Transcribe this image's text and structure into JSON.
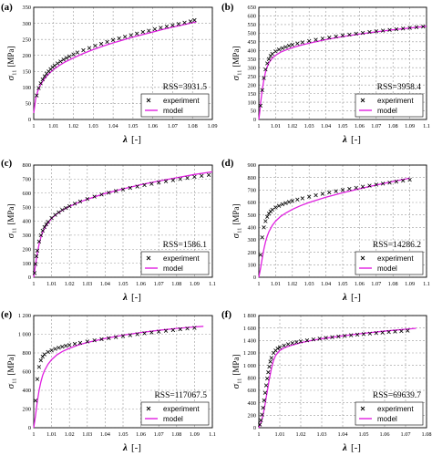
{
  "colors": {
    "experiment": "#000000",
    "model": "#e020e0",
    "grid": "#9a9a9a"
  },
  "chart_data": [
    {
      "label": "(a)",
      "type": "line",
      "xlabel_symbol": "λ",
      "xlabel_unit": "[-]",
      "ylabel_symbol": "σ",
      "ylabel_sub": "11",
      "ylabel_unit": "[MPa]",
      "xlim": [
        1,
        1.09
      ],
      "ylim": [
        0,
        350
      ],
      "xticks": [
        "1",
        "1.01",
        "1.02",
        "1.03",
        "1.04",
        "1.05",
        "1.06",
        "1.07",
        "1.08",
        "1.09"
      ],
      "yticks": [
        "0",
        "50",
        "100",
        "150",
        "200",
        "250",
        "300",
        "350"
      ],
      "rss": "RSS=3931.5",
      "legend": {
        "experiment": "experiment",
        "model": "model"
      },
      "experiment": {
        "x": [
          1.0015,
          1.0025,
          1.0035,
          1.0045,
          1.0055,
          1.0065,
          1.0075,
          1.0085,
          1.0095,
          1.0105,
          1.012,
          1.0135,
          1.015,
          1.0165,
          1.018,
          1.02,
          1.022,
          1.025,
          1.028,
          1.031,
          1.034,
          1.037,
          1.04,
          1.043,
          1.046,
          1.049,
          1.052,
          1.055,
          1.058,
          1.061,
          1.064,
          1.067,
          1.07,
          1.073,
          1.076,
          1.079,
          1.081
        ],
        "y": [
          75,
          98,
          113,
          125,
          135,
          143,
          150,
          157,
          163,
          168,
          175,
          181,
          187,
          192,
          197,
          203,
          209,
          216,
          223,
          230,
          236,
          242,
          248,
          253,
          258,
          263,
          268,
          273,
          277,
          282,
          286,
          290,
          294,
          298,
          302,
          306,
          310
        ]
      },
      "model": {
        "x": [
          1.0,
          1.001,
          1.002,
          1.003,
          1.005,
          1.007,
          1.01,
          1.013,
          1.016,
          1.02,
          1.025,
          1.03,
          1.035,
          1.04,
          1.045,
          1.05,
          1.055,
          1.06,
          1.065,
          1.07,
          1.075,
          1.08,
          1.082
        ],
        "y": [
          20,
          65,
          88,
          103,
          124,
          139,
          156,
          169,
          180,
          192,
          206,
          218,
          229,
          239,
          248,
          257,
          265,
          273,
          281,
          288,
          295,
          302,
          305
        ]
      }
    },
    {
      "label": "(b)",
      "type": "line",
      "xlabel_symbol": "λ",
      "xlabel_unit": "[-]",
      "ylabel_symbol": "σ",
      "ylabel_sub": "11",
      "ylabel_unit": "[MPa]",
      "xlim": [
        1,
        1.1
      ],
      "ylim": [
        0,
        650
      ],
      "xticks": [
        "1",
        "1.01",
        "1.02",
        "1.03",
        "1.04",
        "1.05",
        "1.06",
        "1.07",
        "1.08",
        "1.09",
        "1.1"
      ],
      "yticks": [
        "0",
        "50",
        "100",
        "150",
        "200",
        "250",
        "300",
        "350",
        "400",
        "450",
        "500",
        "550",
        "600",
        "650"
      ],
      "rss": "RSS=3958.4",
      "legend": {
        "experiment": "experiment",
        "model": "model"
      },
      "experiment": {
        "x": [
          1.001,
          1.002,
          1.003,
          1.004,
          1.005,
          1.006,
          1.007,
          1.008,
          1.01,
          1.012,
          1.014,
          1.016,
          1.018,
          1.02,
          1.023,
          1.026,
          1.03,
          1.034,
          1.038,
          1.042,
          1.046,
          1.05,
          1.054,
          1.058,
          1.062,
          1.066,
          1.07,
          1.074,
          1.078,
          1.082,
          1.086,
          1.09,
          1.094,
          1.098
        ],
        "y": [
          80,
          170,
          240,
          290,
          325,
          350,
          368,
          380,
          395,
          405,
          413,
          420,
          427,
          433,
          440,
          447,
          455,
          462,
          469,
          475,
          481,
          487,
          492,
          497,
          502,
          507,
          511,
          515,
          519,
          523,
          527,
          531,
          535,
          538
        ]
      },
      "model": {
        "x": [
          1.0,
          1.0005,
          1.001,
          1.002,
          1.003,
          1.004,
          1.005,
          1.006,
          1.008,
          1.01,
          1.013,
          1.016,
          1.02,
          1.025,
          1.03,
          1.04,
          1.05,
          1.06,
          1.07,
          1.08,
          1.09,
          1.1
        ],
        "y": [
          0,
          40,
          90,
          170,
          230,
          275,
          305,
          328,
          355,
          372,
          390,
          402,
          416,
          430,
          442,
          463,
          480,
          495,
          508,
          520,
          530,
          540
        ]
      }
    },
    {
      "label": "(c)",
      "type": "line",
      "xlabel_symbol": "λ",
      "xlabel_unit": "[-]",
      "ylabel_symbol": "σ",
      "ylabel_sub": "11",
      "ylabel_unit": "[MPa]",
      "xlim": [
        1,
        1.1
      ],
      "ylim": [
        0,
        800
      ],
      "xticks": [
        "1",
        "1.01",
        "1.02",
        "1.03",
        "1.04",
        "1.05",
        "1.06",
        "1.07",
        "1.08",
        "1.09",
        "1.1"
      ],
      "yticks": [
        "0",
        "100",
        "200",
        "300",
        "400",
        "500",
        "600",
        "700",
        "800"
      ],
      "rss": "RSS=1586.1",
      "legend": {
        "experiment": "experiment",
        "model": "model"
      },
      "experiment": {
        "x": [
          1.0005,
          1.001,
          1.0015,
          1.002,
          1.003,
          1.004,
          1.005,
          1.006,
          1.007,
          1.008,
          1.01,
          1.012,
          1.014,
          1.016,
          1.018,
          1.02,
          1.023,
          1.026,
          1.03,
          1.034,
          1.038,
          1.042,
          1.046,
          1.05,
          1.054,
          1.058,
          1.062,
          1.066,
          1.07,
          1.074,
          1.078,
          1.082,
          1.086,
          1.09,
          1.094,
          1.098
        ],
        "y": [
          30,
          95,
          150,
          190,
          255,
          300,
          332,
          358,
          378,
          395,
          422,
          445,
          463,
          480,
          494,
          507,
          525,
          540,
          558,
          575,
          590,
          603,
          615,
          626,
          637,
          647,
          657,
          666,
          675,
          684,
          692,
          700,
          708,
          716,
          723,
          730
        ]
      },
      "model": {
        "x": [
          1.0,
          1.0005,
          1.001,
          1.002,
          1.003,
          1.004,
          1.005,
          1.007,
          1.01,
          1.013,
          1.016,
          1.02,
          1.025,
          1.03,
          1.04,
          1.05,
          1.06,
          1.07,
          1.08,
          1.09,
          1.1
        ],
        "y": [
          0,
          45,
          90,
          170,
          235,
          285,
          322,
          370,
          420,
          452,
          478,
          505,
          533,
          556,
          598,
          630,
          660,
          686,
          710,
          733,
          752
        ]
      }
    },
    {
      "label": "(d)",
      "type": "line",
      "xlabel_symbol": "λ",
      "xlabel_unit": "[-]",
      "ylabel_symbol": "σ",
      "ylabel_sub": "11",
      "ylabel_unit": "[MPa]",
      "xlim": [
        1,
        1.1
      ],
      "ylim": [
        0,
        900
      ],
      "xticks": [
        "1",
        "1.01",
        "1.02",
        "1.03",
        "1.04",
        "1.05",
        "1.06",
        "1.07",
        "1.08",
        "1.09",
        "1.1"
      ],
      "yticks": [
        "0",
        "100",
        "200",
        "300",
        "400",
        "500",
        "600",
        "700",
        "800",
        "900"
      ],
      "rss": "RSS=14286.2",
      "legend": {
        "experiment": "experiment",
        "model": "model"
      },
      "experiment": {
        "x": [
          1.001,
          1.002,
          1.003,
          1.004,
          1.005,
          1.006,
          1.007,
          1.008,
          1.01,
          1.012,
          1.014,
          1.016,
          1.018,
          1.02,
          1.023,
          1.026,
          1.03,
          1.034,
          1.038,
          1.042,
          1.046,
          1.05,
          1.054,
          1.058,
          1.062,
          1.066,
          1.07,
          1.074,
          1.078,
          1.082,
          1.086,
          1.09
        ],
        "y": [
          180,
          320,
          400,
          450,
          485,
          510,
          528,
          542,
          560,
          573,
          585,
          595,
          604,
          612,
          623,
          633,
          646,
          658,
          669,
          680,
          690,
          700,
          709,
          718,
          727,
          735,
          743,
          751,
          759,
          767,
          775,
          782
        ]
      },
      "model": {
        "x": [
          1.0,
          1.001,
          1.002,
          1.003,
          1.004,
          1.005,
          1.006,
          1.008,
          1.01,
          1.013,
          1.016,
          1.02,
          1.025,
          1.03,
          1.04,
          1.05,
          1.06,
          1.07,
          1.08,
          1.09
        ],
        "y": [
          0,
          70,
          150,
          225,
          285,
          330,
          365,
          415,
          450,
          488,
          515,
          545,
          575,
          600,
          642,
          678,
          710,
          740,
          768,
          795
        ]
      }
    },
    {
      "label": "(e)",
      "type": "line",
      "xlabel_symbol": "λ",
      "xlabel_unit": "[-]",
      "ylabel_symbol": "σ",
      "ylabel_sub": "11",
      "ylabel_unit": "[MPa]",
      "xlim": [
        1,
        1.1
      ],
      "ylim": [
        0,
        1200
      ],
      "xticks": [
        "1",
        "1.01",
        "1.02",
        "1.03",
        "1.04",
        "1.05",
        "1.06",
        "1.07",
        "1.08",
        "1.09",
        "1.1"
      ],
      "yticks": [
        "0",
        "200",
        "400",
        "600",
        "800",
        "1 000",
        "1 200"
      ],
      "rss": "RSS=117067.5",
      "legend": {
        "experiment": "experiment",
        "model": "model"
      },
      "experiment": {
        "x": [
          1.001,
          1.002,
          1.003,
          1.004,
          1.005,
          1.006,
          1.008,
          1.01,
          1.012,
          1.014,
          1.016,
          1.018,
          1.02,
          1.023,
          1.026,
          1.03,
          1.034,
          1.038,
          1.042,
          1.046,
          1.05,
          1.054,
          1.058,
          1.062,
          1.066,
          1.07,
          1.074,
          1.078,
          1.082,
          1.086,
          1.09
        ],
        "y": [
          290,
          520,
          650,
          720,
          760,
          785,
          810,
          828,
          843,
          855,
          866,
          876,
          885,
          897,
          908,
          922,
          935,
          947,
          958,
          969,
          980,
          990,
          1000,
          1010,
          1019,
          1028,
          1037,
          1045,
          1053,
          1061,
          1068
        ]
      },
      "model": {
        "x": [
          1.0,
          1.001,
          1.002,
          1.003,
          1.004,
          1.005,
          1.006,
          1.008,
          1.01,
          1.013,
          1.016,
          1.02,
          1.025,
          1.03,
          1.04,
          1.05,
          1.06,
          1.07,
          1.08,
          1.09,
          1.095
        ],
        "y": [
          0,
          130,
          280,
          400,
          490,
          560,
          610,
          680,
          728,
          780,
          815,
          850,
          885,
          912,
          955,
          990,
          1018,
          1042,
          1062,
          1078,
          1085
        ]
      }
    },
    {
      "label": "(f)",
      "type": "line",
      "xlabel_symbol": "λ",
      "xlabel_unit": "[-]",
      "ylabel_symbol": "σ",
      "ylabel_sub": "11",
      "ylabel_unit": "[MPa]",
      "xlim": [
        1,
        1.08
      ],
      "ylim": [
        0,
        1800
      ],
      "xticks": [
        "1",
        "1.01",
        "1.02",
        "1.03",
        "1.04",
        "1.05",
        "1.06",
        "1.07",
        "1.08"
      ],
      "yticks": [
        "0",
        "200",
        "400",
        "600",
        "800",
        "1 000",
        "1 200",
        "1 400",
        "1 600",
        "1 800"
      ],
      "rss": "RSS=69639.7",
      "legend": {
        "experiment": "experiment",
        "model": "model"
      },
      "experiment": {
        "x": [
          1.0005,
          1.001,
          1.0015,
          1.002,
          1.0025,
          1.003,
          1.0035,
          1.004,
          1.0045,
          1.005,
          1.0055,
          1.006,
          1.007,
          1.008,
          1.009,
          1.01,
          1.012,
          1.014,
          1.016,
          1.018,
          1.02,
          1.023,
          1.026,
          1.029,
          1.032,
          1.035,
          1.038,
          1.041,
          1.044,
          1.047,
          1.05,
          1.053,
          1.056,
          1.059,
          1.062,
          1.065,
          1.068,
          1.071
        ],
        "y": [
          50,
          120,
          210,
          320,
          440,
          560,
          680,
          790,
          890,
          980,
          1060,
          1120,
          1200,
          1240,
          1270,
          1290,
          1318,
          1340,
          1358,
          1373,
          1386,
          1402,
          1417,
          1430,
          1442,
          1453,
          1464,
          1474,
          1484,
          1493,
          1502,
          1511,
          1519,
          1527,
          1535,
          1543,
          1550,
          1557
        ]
      },
      "model": {
        "x": [
          1.0,
          1.001,
          1.002,
          1.003,
          1.004,
          1.005,
          1.006,
          1.007,
          1.008,
          1.01,
          1.012,
          1.015,
          1.02,
          1.025,
          1.03,
          1.04,
          1.05,
          1.06,
          1.07,
          1.075
        ],
        "y": [
          0,
          80,
          200,
          380,
          580,
          780,
          950,
          1080,
          1160,
          1240,
          1280,
          1318,
          1365,
          1400,
          1428,
          1475,
          1515,
          1550,
          1580,
          1595
        ]
      }
    }
  ]
}
